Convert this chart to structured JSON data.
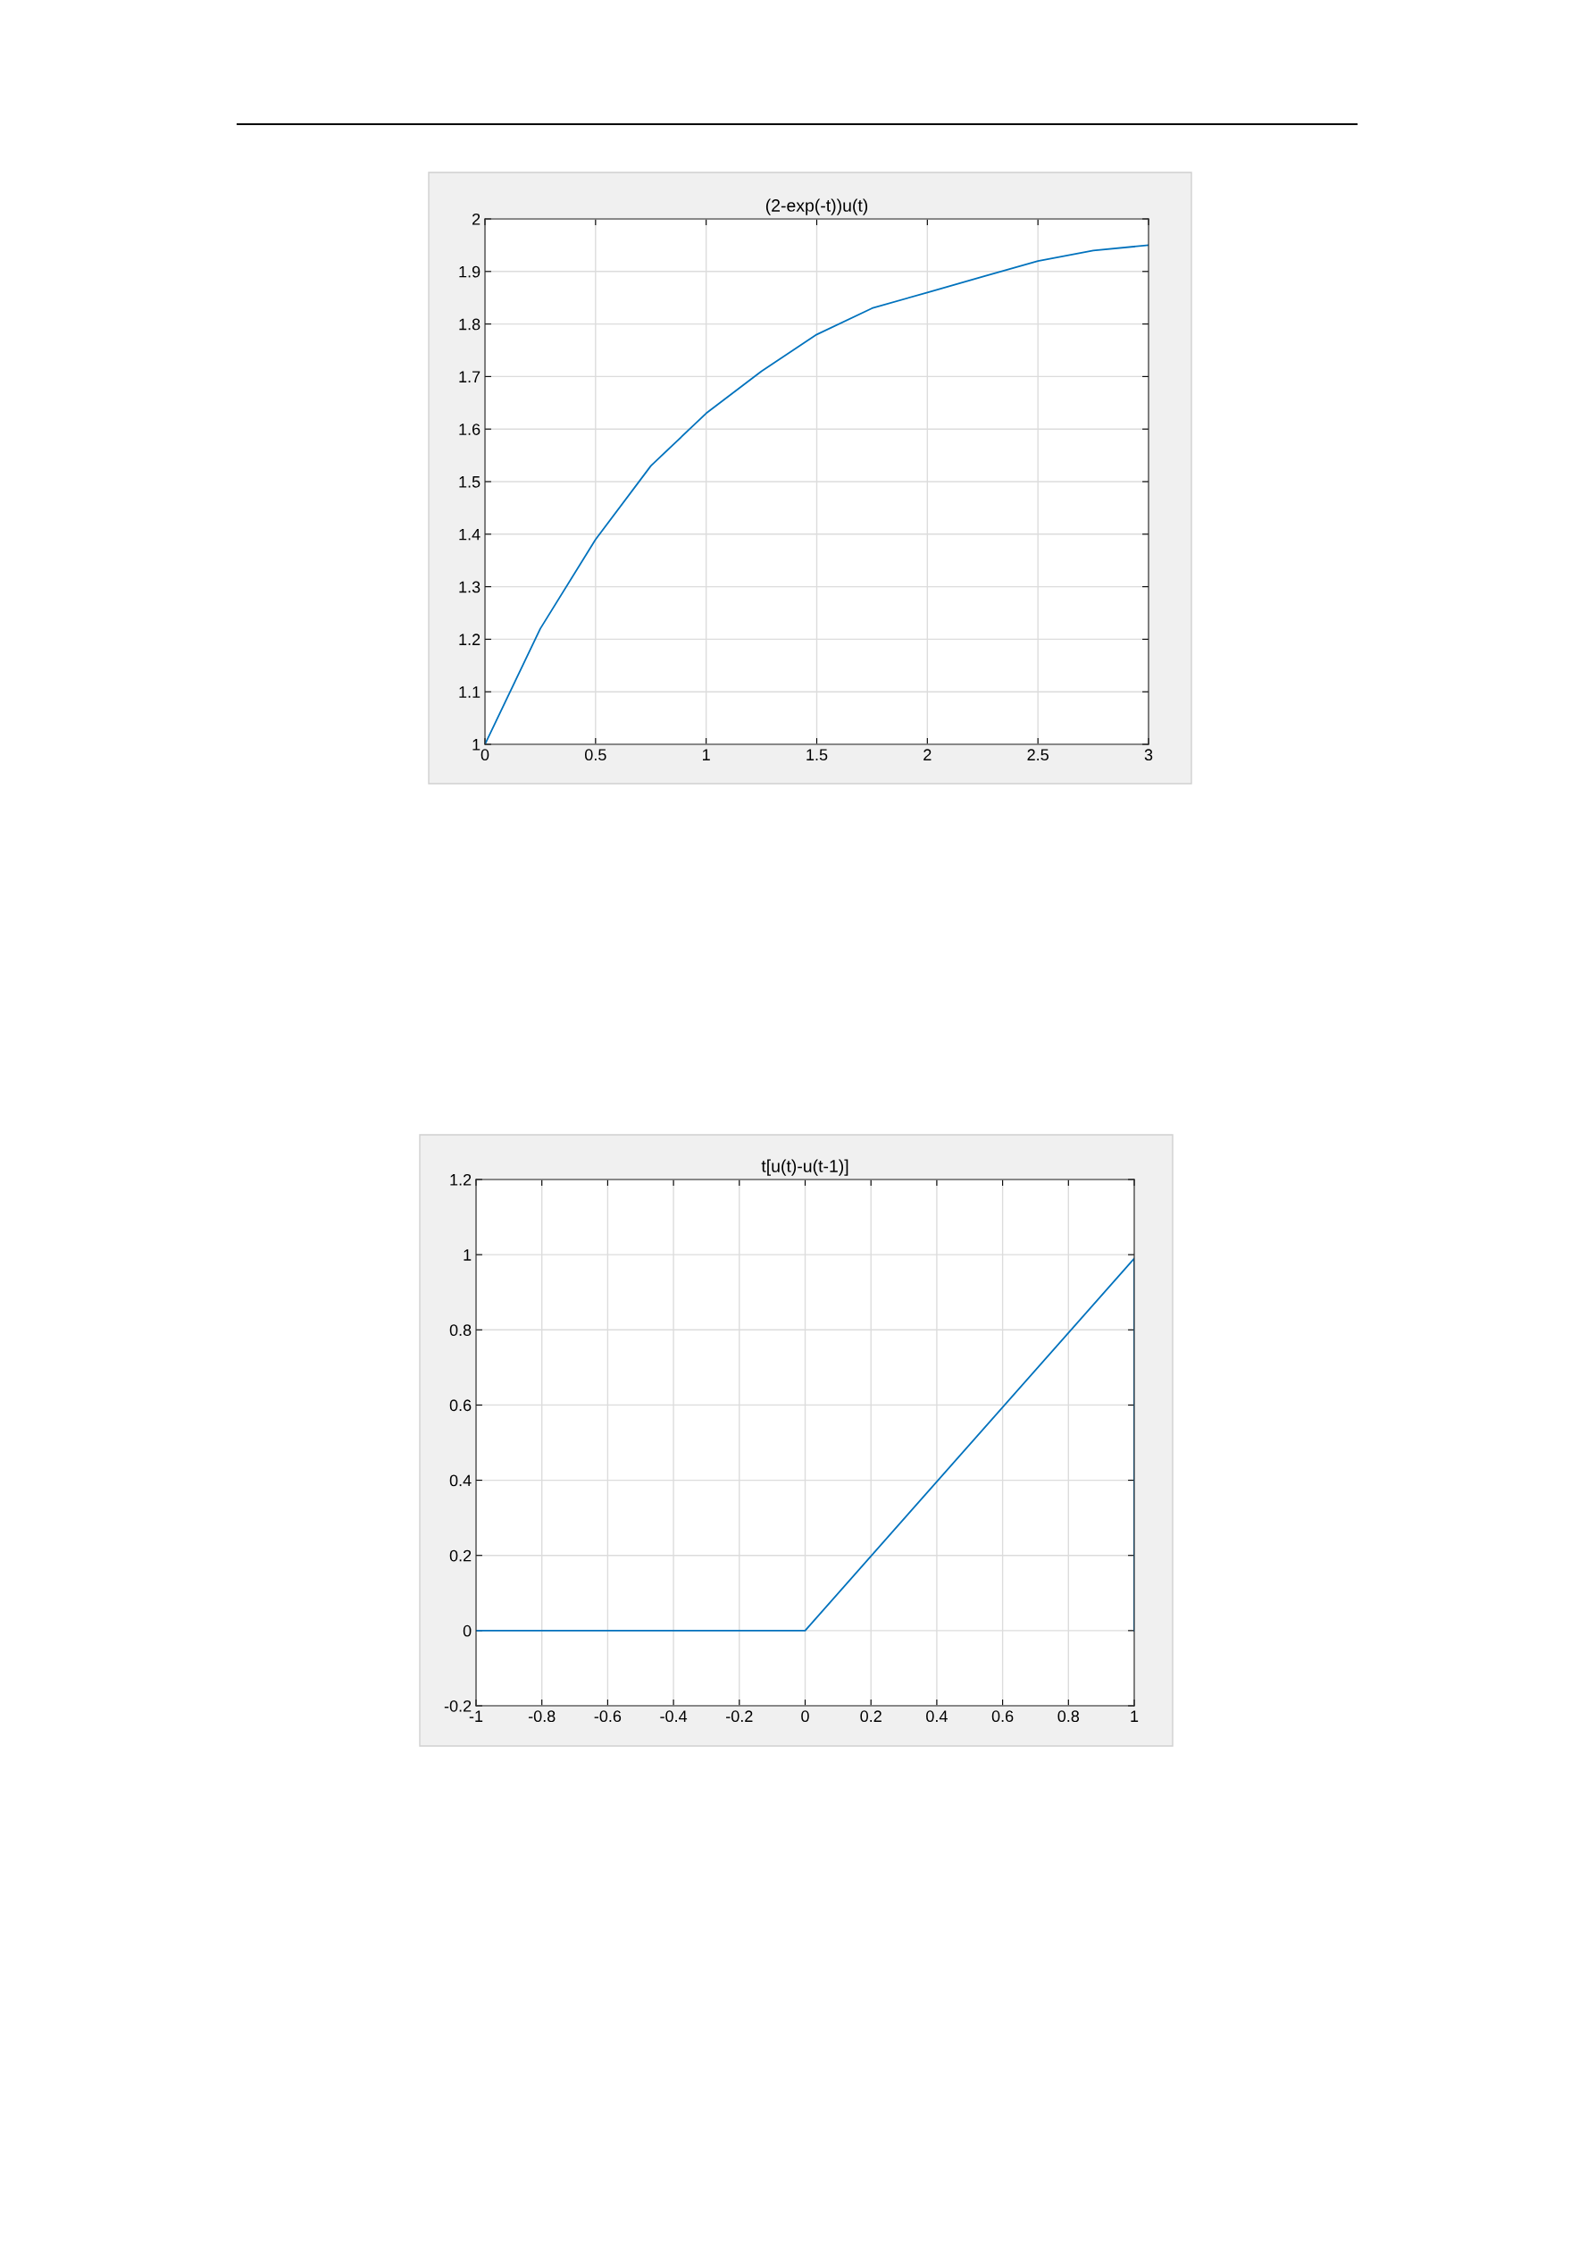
{
  "chart_data": [
    {
      "type": "line",
      "title": "(2-exp(-t))u(t)",
      "x": [
        0,
        0.25,
        0.5,
        0.75,
        1,
        1.25,
        1.5,
        1.75,
        2,
        2.25,
        2.5,
        2.75,
        3
      ],
      "series": [
        {
          "color": "#0072bd",
          "values": [
            1.0,
            1.22,
            1.39,
            1.53,
            1.63,
            1.71,
            1.78,
            1.83,
            1.86,
            1.89,
            1.92,
            1.94,
            1.95
          ]
        }
      ],
      "xlim": [
        0,
        3
      ],
      "ylim": [
        1,
        2
      ],
      "xticks": [
        0,
        0.5,
        1,
        1.5,
        2,
        2.5,
        3
      ],
      "yticks": [
        1,
        1.1,
        1.2,
        1.3,
        1.4,
        1.5,
        1.6,
        1.7,
        1.8,
        1.9,
        2
      ],
      "grid": true
    },
    {
      "type": "line",
      "title": "t[u(t)-u(t-1)]",
      "x": [
        -1,
        0,
        1,
        1
      ],
      "series": [
        {
          "color": "#0072bd",
          "values": [
            0,
            0,
            0.99,
            0
          ]
        }
      ],
      "xlim": [
        -1,
        1
      ],
      "ylim": [
        -0.2,
        1.2
      ],
      "xticks": [
        -1,
        -0.8,
        -0.6,
        -0.4,
        -0.2,
        0,
        0.2,
        0.4,
        0.6,
        0.8,
        1
      ],
      "yticks": [
        -0.2,
        0,
        0.2,
        0.4,
        0.6,
        0.8,
        1,
        1.2
      ],
      "grid": true
    }
  ]
}
